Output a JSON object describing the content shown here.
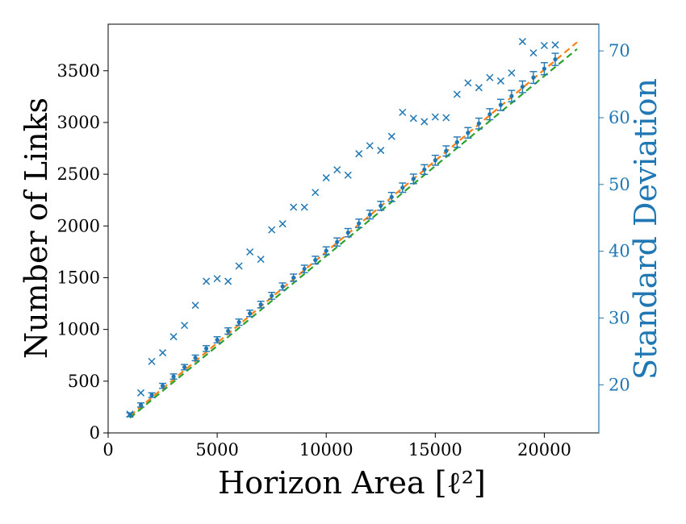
{
  "chart_data": {
    "type": "scatter",
    "xlabel": "Horizon Area [ℓ²]",
    "ylabel": "Number of Links",
    "ylabel_right": "Standard Deviation",
    "xlim": [
      0,
      22500
    ],
    "ylim": [
      0,
      3950
    ],
    "ylim_right": [
      12.8,
      74.0
    ],
    "xticks": [
      0,
      5000,
      10000,
      15000,
      20000
    ],
    "yticks": [
      0,
      500,
      1000,
      1500,
      2000,
      2500,
      3000,
      3500
    ],
    "yticks_right": [
      20,
      30,
      40,
      50,
      60,
      70
    ],
    "grid": false,
    "colors": {
      "links": "#1f77b4",
      "std": "#1f77b4",
      "fit_orange": "#ff7f0e",
      "fit_green": "#2ca02c",
      "right_axis": "#1f77b4"
    },
    "series": [
      {
        "kind": "errorbar",
        "axis": "left",
        "x": [
          1000,
          1500,
          2000,
          2500,
          3000,
          3500,
          4000,
          4500,
          5000,
          5500,
          6000,
          6500,
          7000,
          7500,
          8000,
          8500,
          9000,
          9500,
          10000,
          10500,
          11000,
          11500,
          12000,
          12500,
          13000,
          13500,
          14000,
          14500,
          15000,
          15500,
          16000,
          16500,
          17000,
          17500,
          18000,
          18500,
          19000,
          19500,
          20000,
          20500
        ],
        "y": [
          175,
          270,
          365,
          455,
          545,
          635,
          725,
          815,
          900,
          985,
          1070,
          1155,
          1240,
          1325,
          1415,
          1500,
          1585,
          1670,
          1760,
          1845,
          1935,
          2025,
          2110,
          2195,
          2280,
          2370,
          2455,
          2545,
          2635,
          2725,
          2810,
          2900,
          2990,
          3080,
          3170,
          3255,
          3345,
          3435,
          3520,
          3610
        ],
        "yerr": [
          18,
          20,
          22,
          24,
          25,
          26,
          27,
          28,
          29,
          30,
          30,
          31,
          32,
          33,
          34,
          35,
          36,
          37,
          38,
          39,
          40,
          41,
          42,
          43,
          44,
          45,
          46,
          47,
          48,
          49,
          50,
          51,
          52,
          53,
          54,
          55,
          56,
          57,
          58,
          59
        ]
      },
      {
        "kind": "scatter-x",
        "axis": "right",
        "x": [
          1000,
          1500,
          2000,
          2500,
          3000,
          3500,
          4000,
          4500,
          5000,
          5500,
          6000,
          6500,
          7000,
          7500,
          8000,
          8500,
          9000,
          9500,
          10000,
          10500,
          11000,
          11500,
          12000,
          12500,
          13000,
          13500,
          14000,
          14500,
          15000,
          15500,
          16000,
          16500,
          17000,
          17500,
          18000,
          18500,
          19000,
          19500,
          20000,
          20500
        ],
        "y": [
          15.6,
          18.8,
          23.5,
          24.8,
          27.2,
          28.9,
          31.9,
          35.5,
          35.9,
          35.5,
          37.8,
          39.9,
          38.8,
          43.2,
          44.1,
          46.6,
          46.6,
          48.8,
          51.0,
          52.2,
          51.4,
          54.6,
          55.8,
          55.1,
          57.2,
          60.8,
          59.9,
          59.4,
          60.1,
          60.0,
          63.5,
          65.2,
          64.5,
          66.0,
          65.5,
          66.7,
          71.4,
          69.7,
          70.8,
          70.9
        ]
      },
      {
        "kind": "line",
        "axis": "left",
        "style": "dashed",
        "color_key": "fit_orange",
        "x": [
          1000,
          21500
        ],
        "y": [
          165,
          3775
        ]
      },
      {
        "kind": "line",
        "axis": "left",
        "style": "dashed",
        "color_key": "fit_green",
        "x": [
          1000,
          21500
        ],
        "y": [
          145,
          3710
        ]
      }
    ]
  }
}
